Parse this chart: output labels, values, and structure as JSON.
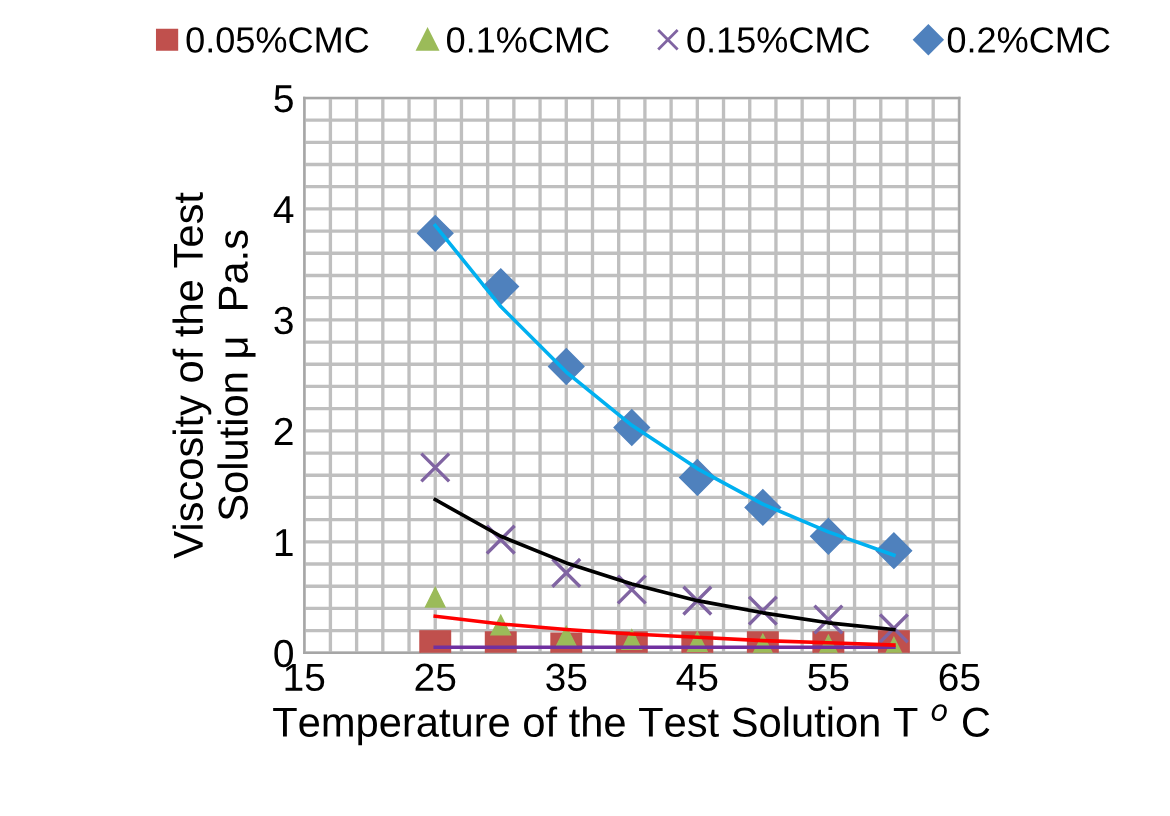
{
  "chart_data": {
    "type": "scatter",
    "xlabel": "Temperature of the Test Solution T $^{o}$ C",
    "ylabel": "Viscosity of the Test\nSolution μ  Pa.s",
    "xlim": [
      15,
      65
    ],
    "ylim": [
      0,
      5
    ],
    "xticks": [
      15,
      {
        "value": 17,
        "label": null
      },
      {
        "value": 19,
        "label": null
      },
      {
        "value": 21,
        "label": null
      },
      {
        "value": 23,
        "label": null
      },
      25,
      {
        "value": 27,
        "label": null
      },
      {
        "value": 29,
        "label": null
      },
      {
        "value": 31,
        "label": null
      },
      {
        "value": 33,
        "label": null
      },
      35,
      {
        "value": 37,
        "label": null
      },
      {
        "value": 39,
        "label": null
      },
      {
        "value": 41,
        "label": null
      },
      {
        "value": 43,
        "label": null
      },
      45,
      {
        "value": 47,
        "label": null
      },
      {
        "value": 49,
        "label": null
      },
      {
        "value": 51,
        "label": null
      },
      {
        "value": 53,
        "label": null
      },
      55,
      {
        "value": 57,
        "label": null
      },
      {
        "value": 59,
        "label": null
      },
      {
        "value": 61,
        "label": null
      },
      {
        "value": 63,
        "label": null
      },
      65
    ],
    "yticks": [
      0,
      {
        "value": 0.2,
        "label": null
      },
      {
        "value": 0.4,
        "label": null
      },
      {
        "value": 0.6,
        "label": null
      },
      {
        "value": 0.8,
        "label": null
      },
      1,
      {
        "value": 1.2,
        "label": null
      },
      {
        "value": 1.4,
        "label": null
      },
      {
        "value": 1.6,
        "label": null
      },
      {
        "value": 1.8,
        "label": null
      },
      2,
      {
        "value": 2.2,
        "label": null
      },
      {
        "value": 2.4,
        "label": null
      },
      {
        "value": 2.6,
        "label": null
      },
      {
        "value": 2.8,
        "label": null
      },
      3,
      {
        "value": 3.2,
        "label": null
      },
      {
        "value": 3.4,
        "label": null
      },
      {
        "value": 3.6,
        "label": null
      },
      {
        "value": 3.8,
        "label": null
      },
      4,
      {
        "value": 4.2,
        "label": null
      },
      {
        "value": 4.4,
        "label": null
      },
      {
        "value": 4.6,
        "label": null
      },
      {
        "value": 4.8,
        "label": null
      },
      5
    ],
    "grid": true,
    "legend": "top",
    "x": [
      25,
      30,
      35,
      40,
      45,
      50,
      55,
      60
    ],
    "series": [
      {
        "name": "0.05%CMC",
        "color": "#c0504d",
        "marker": "square",
        "values": [
          0.06,
          0.05,
          0.04,
          0.05,
          0.05,
          0.05,
          0.05,
          0.06
        ]
      },
      {
        "name": "0.1%CMC",
        "color": "#9bbb59",
        "marker": "triangle",
        "values": [
          0.5,
          0.25,
          0.15,
          0.12,
          0.1,
          0.08,
          0.07,
          0.05
        ]
      },
      {
        "name": "0.15%CMC",
        "color": "#8064a2",
        "marker": "cross",
        "values": [
          1.67,
          1.02,
          0.72,
          0.57,
          0.47,
          0.38,
          0.3,
          0.22
        ]
      },
      {
        "name": "0.2%CMC",
        "color": "#4f81bd",
        "marker": "diamond",
        "values": [
          3.78,
          3.3,
          2.58,
          2.03,
          1.58,
          1.31,
          1.05,
          0.92
        ]
      },
      {
        "type": "line",
        "color": "#7030a0",
        "marker": "none",
        "x": [
          25,
          60
        ],
        "values": [
          0.05,
          0.05
        ]
      },
      {
        "type": "line",
        "color": "#ff0000",
        "marker": "none",
        "x": [
          25,
          30,
          35,
          40,
          45,
          50,
          55,
          60
        ],
        "values": [
          0.33,
          0.26,
          0.21,
          0.17,
          0.14,
          0.11,
          0.09,
          0.07
        ]
      },
      {
        "type": "line",
        "color": "#000000",
        "marker": "none",
        "x": [
          25,
          30,
          35,
          40,
          45,
          50,
          55,
          60
        ],
        "values": [
          1.38,
          1.05,
          0.81,
          0.62,
          0.47,
          0.36,
          0.27,
          0.21
        ]
      },
      {
        "type": "line",
        "color": "#00b0f0",
        "marker": "none",
        "x": [
          25,
          30,
          35,
          40,
          45,
          50,
          55,
          60
        ],
        "values": [
          3.85,
          3.12,
          2.53,
          2.05,
          1.66,
          1.34,
          1.09,
          0.88
        ]
      }
    ]
  }
}
